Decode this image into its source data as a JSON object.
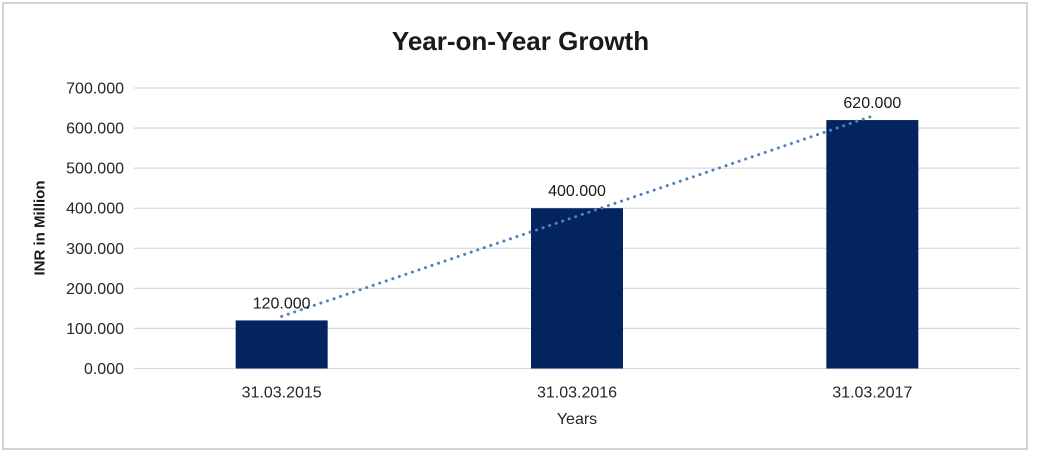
{
  "chart_data": {
    "type": "bar",
    "title": "Year-on-Year Growth",
    "xlabel": "Years",
    "ylabel": "INR in Million",
    "categories": [
      "31.03.2015",
      "31.03.2016",
      "31.03.2017"
    ],
    "values": [
      120,
      400,
      620
    ],
    "data_labels": [
      "120.000",
      "400.000",
      "620.000"
    ],
    "ylim": [
      0,
      700
    ],
    "ytick_values": [
      0,
      100,
      200,
      300,
      400,
      500,
      600,
      700
    ],
    "ytick_labels": [
      "0.000",
      "100.000",
      "200.000",
      "300.000",
      "400.000",
      "500.000",
      "600.000",
      "700.000"
    ],
    "grid": true,
    "legend": false,
    "trendline": {
      "type": "linear",
      "style": "dotted"
    },
    "colors": {
      "bar": "#04245f",
      "trendline": "#4f81bd",
      "gridline": "#d9d9d9",
      "axis_line": "#d9d9d9",
      "tick_text": "#262626",
      "data_label_text": "#1a1a1a",
      "title_text": "#1a1a1a",
      "frame_border": "#d3d3d3",
      "background": "#ffffff"
    }
  }
}
